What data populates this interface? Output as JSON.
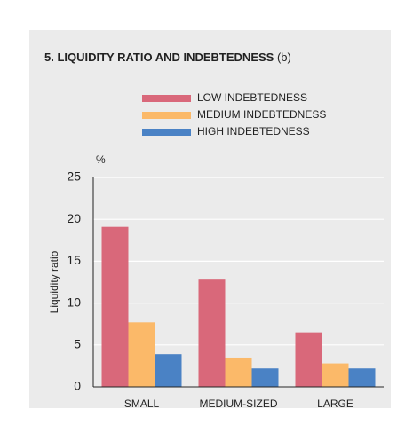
{
  "chart_data": {
    "type": "bar",
    "title": "5. LIQUIDITY RATIO AND INDEBTEDNESS",
    "subtitle": "(b)",
    "y_unit": "%",
    "y_label": "Liquidity ratio",
    "categories": [
      "SMALL",
      "MEDIUM-SIZED",
      "LARGE"
    ],
    "series": [
      {
        "name": "LOW INDEBTEDNESS",
        "color": "#d9687a",
        "values": [
          19.1,
          12.8,
          6.5
        ]
      },
      {
        "name": "MEDIUM INDEBTEDNESS",
        "color": "#fbb969",
        "values": [
          7.7,
          3.5,
          2.8
        ]
      },
      {
        "name": "HIGH INDEBTEDNESS",
        "color": "#4a82c5",
        "values": [
          3.9,
          2.2,
          2.2
        ]
      }
    ],
    "ylim": [
      0,
      25
    ],
    "yticks": [
      0,
      5,
      10,
      15,
      20,
      25
    ],
    "grid": true
  }
}
